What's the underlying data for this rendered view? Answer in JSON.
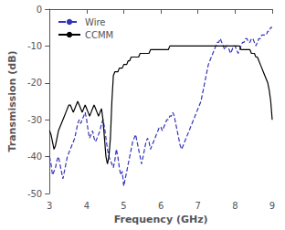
{
  "chart_data": {
    "type": "line",
    "xlabel": "Frequency (GHz)",
    "ylabel": "Transmission (dB)",
    "xlim": [
      3,
      9
    ],
    "ylim": [
      -50,
      0
    ],
    "xticks": [
      3,
      4,
      5,
      6,
      7,
      8,
      9
    ],
    "yticks": [
      0,
      -10,
      -20,
      -30,
      -40,
      -50
    ],
    "grid": false,
    "legend": "upper left",
    "x": [
      3.0,
      3.04,
      3.08,
      3.12,
      3.16,
      3.2,
      3.24,
      3.28,
      3.32,
      3.36,
      3.4,
      3.44,
      3.48,
      3.52,
      3.56,
      3.6,
      3.64,
      3.68,
      3.72,
      3.76,
      3.8,
      3.84,
      3.88,
      3.92,
      3.96,
      4.0,
      4.04,
      4.08,
      4.12,
      4.16,
      4.2,
      4.24,
      4.28,
      4.32,
      4.36,
      4.4,
      4.44,
      4.48,
      4.52,
      4.56,
      4.6,
      4.64,
      4.68,
      4.72,
      4.76,
      4.8,
      4.84,
      4.88,
      4.92,
      4.96,
      5.0,
      5.04,
      5.08,
      5.12,
      5.16,
      5.2,
      5.24,
      5.28,
      5.32,
      5.36,
      5.4,
      5.44,
      5.48,
      5.52,
      5.56,
      5.6,
      5.64,
      5.68,
      5.72,
      5.76,
      5.8,
      5.84,
      5.88,
      5.92,
      5.96,
      6.0,
      6.04,
      6.08,
      6.12,
      6.16,
      6.2,
      6.24,
      6.28,
      6.32,
      6.36,
      6.4,
      6.44,
      6.48,
      6.52,
      6.56,
      6.6,
      6.64,
      6.68,
      6.72,
      6.76,
      6.8,
      6.84,
      6.88,
      6.92,
      6.96,
      7.0,
      7.04,
      7.08,
      7.12,
      7.16,
      7.2,
      7.24,
      7.28,
      7.32,
      7.36,
      7.4,
      7.44,
      7.48,
      7.52,
      7.56,
      7.6,
      7.64,
      7.68,
      7.72,
      7.76,
      7.8,
      7.84,
      7.88,
      7.92,
      7.96,
      8.0,
      8.04,
      8.08,
      8.12,
      8.16,
      8.2,
      8.24,
      8.28,
      8.32,
      8.36,
      8.4,
      8.44,
      8.48,
      8.52,
      8.56,
      8.6,
      8.64,
      8.68,
      8.72,
      8.76,
      8.8,
      8.84,
      8.88,
      8.92,
      8.96,
      9.0
    ],
    "series": [
      {
        "name": "Wire",
        "color": "#3333bb",
        "line_style": "dashed",
        "values": [
          -40,
          -42,
          -45,
          -44,
          -43,
          -41,
          -40,
          -42,
          -44,
          -46,
          -44,
          -42,
          -40,
          -39,
          -38,
          -37,
          -36,
          -35,
          -33,
          -31,
          -30,
          -31,
          -30,
          -29,
          -28,
          -30,
          -33,
          -35,
          -34,
          -33,
          -35,
          -36,
          -35,
          -34,
          -33,
          -31,
          -30,
          -32,
          -35,
          -38,
          -40,
          -41,
          -42,
          -43,
          -41,
          -38,
          -40,
          -43,
          -45,
          -44,
          -48,
          -46,
          -44,
          -42,
          -40,
          -38,
          -36,
          -35,
          -34,
          -36,
          -38,
          -40,
          -42,
          -40,
          -38,
          -36,
          -35,
          -36,
          -38,
          -37,
          -36,
          -35,
          -34,
          -33,
          -32,
          -32,
          -33,
          -32,
          -31,
          -30,
          -30,
          -29,
          -29,
          -28,
          -29,
          -31,
          -33,
          -35,
          -37,
          -38,
          -37,
          -36,
          -35,
          -34,
          -33,
          -32,
          -31,
          -30,
          -29,
          -28,
          -27,
          -26,
          -25,
          -23,
          -21,
          -19,
          -17,
          -15,
          -14,
          -13,
          -12,
          -11,
          -10,
          -9,
          -9,
          -8,
          -9,
          -10,
          -11,
          -10,
          -10,
          -11,
          -12,
          -11,
          -10,
          -10,
          -11,
          -12,
          -11,
          -10,
          -9,
          -9,
          -8,
          -8,
          -9,
          -9,
          -8,
          -8,
          -9,
          -10,
          -9,
          -8,
          -8,
          -7,
          -7,
          -7,
          -7,
          -6,
          -6,
          -5,
          -5
        ]
      },
      {
        "name": "CCMM",
        "color": "#000000",
        "line_style": "solid",
        "values": [
          -33,
          -34,
          -36,
          -38,
          -37,
          -35,
          -33,
          -32,
          -31,
          -30,
          -29,
          -28,
          -27,
          -26,
          -26,
          -27,
          -28,
          -27,
          -26,
          -25,
          -26,
          -27,
          -28,
          -27,
          -26,
          -27,
          -28,
          -29,
          -28,
          -27,
          -26,
          -27,
          -28,
          -29,
          -28,
          -27,
          -30,
          -35,
          -40,
          -42,
          -40,
          -35,
          -25,
          -18,
          -17,
          -17,
          -17,
          -16,
          -16,
          -16,
          -15,
          -15,
          -15,
          -14,
          -14,
          -13,
          -13,
          -13,
          -13,
          -13,
          -13,
          -12,
          -12,
          -12,
          -12,
          -12,
          -12,
          -12,
          -11,
          -11,
          -11,
          -11,
          -11,
          -11,
          -11,
          -11,
          -11,
          -11,
          -11,
          -11,
          -11,
          -10,
          -10,
          -10,
          -10,
          -10,
          -10,
          -10,
          -10,
          -10,
          -10,
          -10,
          -10,
          -10,
          -10,
          -10,
          -10,
          -10,
          -10,
          -10,
          -10,
          -10,
          -10,
          -10,
          -10,
          -10,
          -10,
          -10,
          -10,
          -10,
          -10,
          -10,
          -10,
          -10,
          -10,
          -10,
          -10,
          -10,
          -10,
          -10,
          -10,
          -10,
          -10,
          -10,
          -10,
          -10,
          -10,
          -10,
          -10,
          -11,
          -11,
          -11,
          -11,
          -11,
          -11,
          -11,
          -12,
          -12,
          -12,
          -13,
          -13,
          -14,
          -15,
          -16,
          -17,
          -18,
          -19,
          -20,
          -22,
          -25,
          -30
        ]
      }
    ]
  }
}
